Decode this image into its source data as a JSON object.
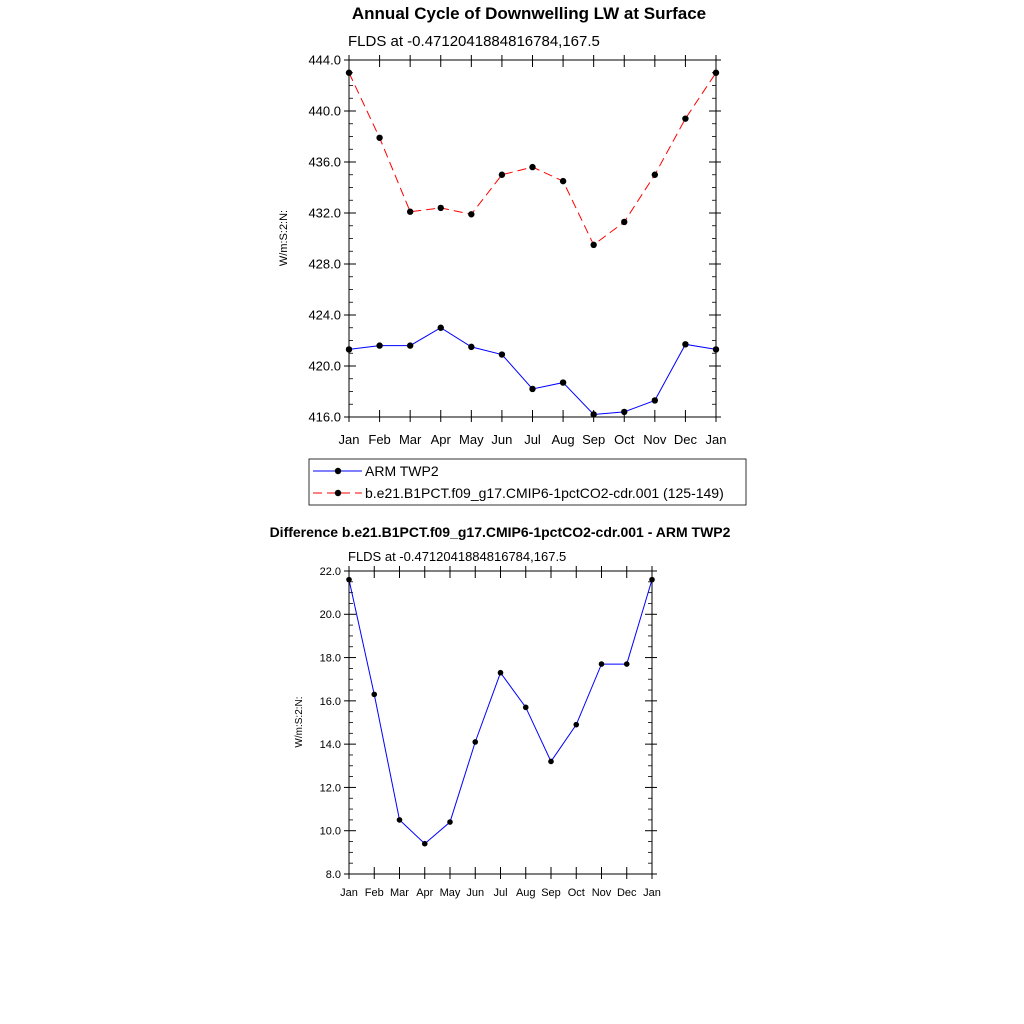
{
  "chart_data": [
    {
      "type": "line",
      "title": "Annual Cycle of Downwelling LW at Surface",
      "subtitle": "FLDS at -0.4712041884816784,167.5",
      "ylabel": "W/m:S:2:N:",
      "ylim": [
        416.0,
        444.0
      ],
      "yticks": [
        "416.0",
        "420.0",
        "424.0",
        "428.0",
        "432.0",
        "436.0",
        "440.0",
        "444.0"
      ],
      "categories": [
        "Jan",
        "Feb",
        "Mar",
        "Apr",
        "May",
        "Jun",
        "Jul",
        "Aug",
        "Sep",
        "Oct",
        "Nov",
        "Dec",
        "Jan"
      ],
      "legend_position": "below",
      "series": [
        {
          "name": "ARM TWP2",
          "color": "#0000ff",
          "style": "solid",
          "values": [
            421.3,
            421.6,
            421.6,
            423.0,
            421.5,
            420.9,
            418.2,
            418.7,
            416.2,
            416.4,
            417.3,
            421.7,
            421.3
          ]
        },
        {
          "name": "b.e21.B1PCT.f09_g17.CMIP6-1pctCO2-cdr.001 (125-149)",
          "color": "#ff0000",
          "style": "dashed",
          "values": [
            443.0,
            437.9,
            432.1,
            432.4,
            431.9,
            435.0,
            435.6,
            434.5,
            429.5,
            431.3,
            435.0,
            439.4,
            443.0
          ]
        }
      ]
    },
    {
      "type": "line",
      "title": "Difference b.e21.B1PCT.f09_g17.CMIP6-1pctCO2-cdr.001 - ARM TWP2",
      "subtitle": "FLDS at -0.4712041884816784,167.5",
      "ylabel": "W/m:S:2:N:",
      "ylim": [
        8.0,
        22.0
      ],
      "yticks": [
        "8.0",
        "10.0",
        "12.0",
        "14.0",
        "16.0",
        "18.0",
        "20.0",
        "22.0"
      ],
      "categories": [
        "Jan",
        "Feb",
        "Mar",
        "Apr",
        "May",
        "Jun",
        "Jul",
        "Aug",
        "Sep",
        "Oct",
        "Nov",
        "Dec",
        "Jan"
      ],
      "series": [
        {
          "color": "#0000ff",
          "style": "solid",
          "values": [
            21.6,
            16.3,
            10.5,
            9.4,
            10.4,
            14.1,
            17.3,
            15.7,
            13.2,
            14.9,
            17.7,
            17.7,
            21.6
          ]
        }
      ]
    }
  ]
}
